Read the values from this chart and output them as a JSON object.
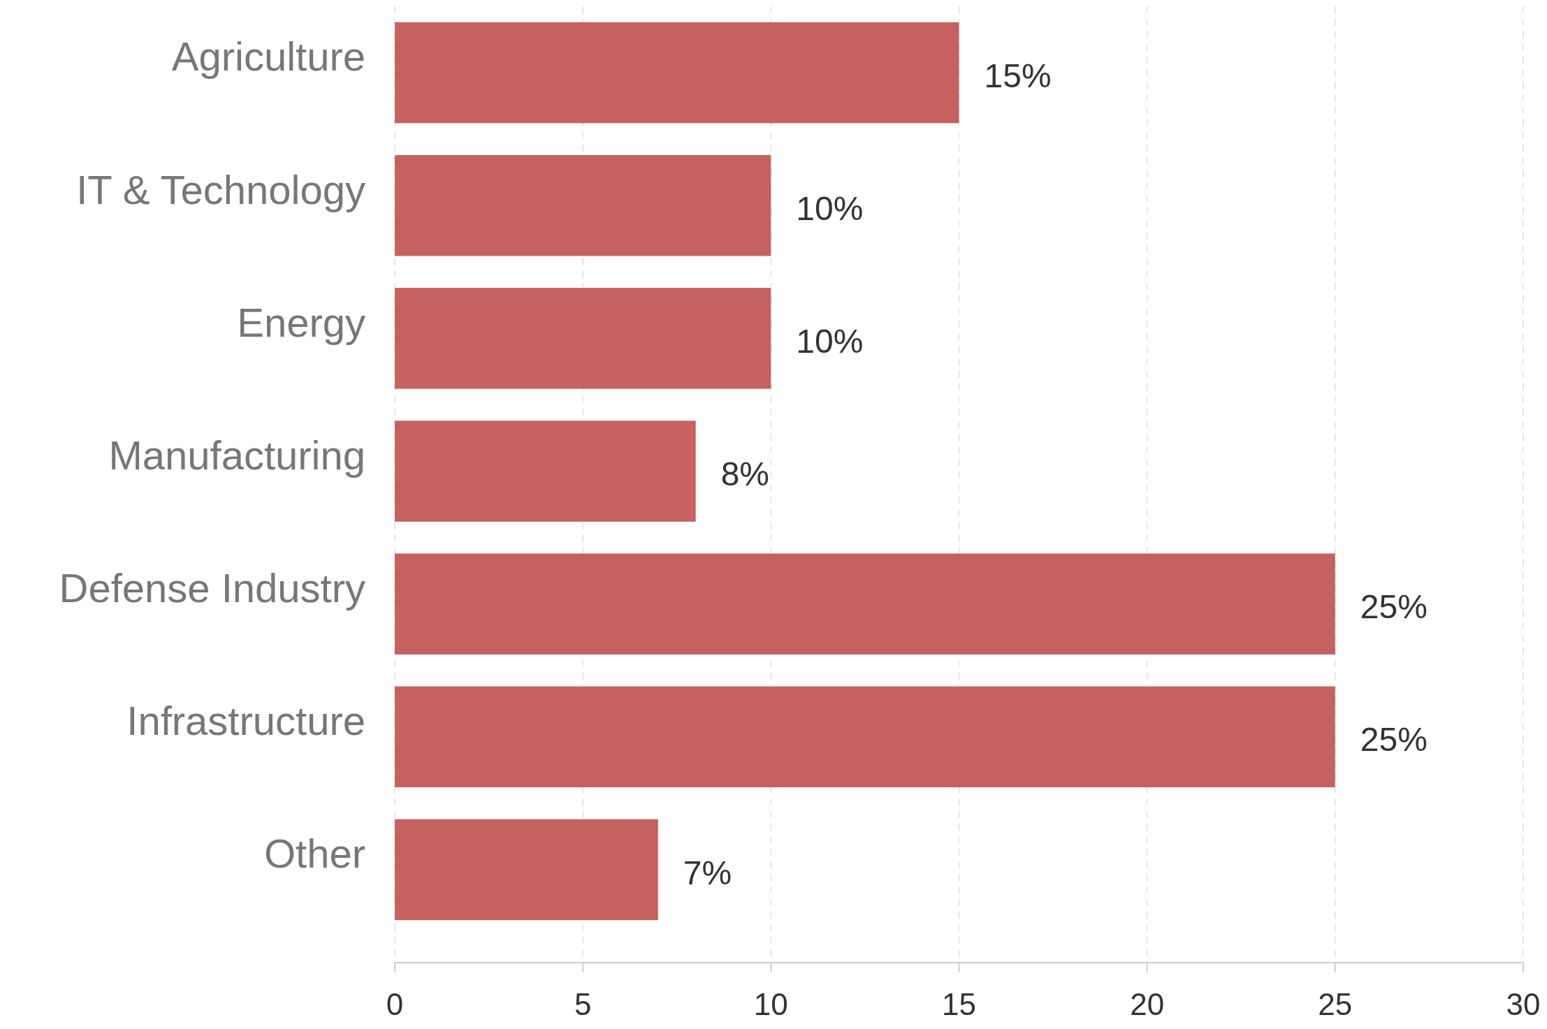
{
  "chart_data": {
    "type": "bar",
    "orientation": "horizontal",
    "categories": [
      "Agriculture",
      "IT & Technology",
      "Energy",
      "Manufacturing",
      "Defense Industry",
      "Infrastructure",
      "Other"
    ],
    "values": [
      15,
      10,
      10,
      8,
      25,
      25,
      7
    ],
    "value_labels": [
      "15%",
      "10%",
      "10%",
      "8%",
      "25%",
      "25%",
      "7%"
    ],
    "color": "#c5625f",
    "xlim": [
      0,
      30
    ],
    "xticks": [
      0,
      5,
      10,
      15,
      20,
      25,
      30
    ],
    "grid": "x"
  }
}
